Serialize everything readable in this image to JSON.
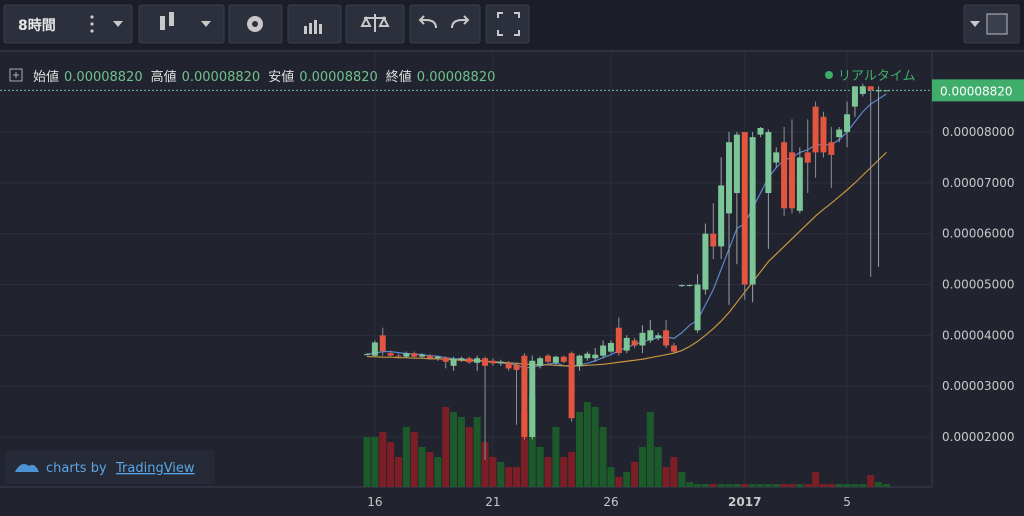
{
  "toolbar": {
    "interval": "8時間"
  },
  "legend": {
    "items": [
      {
        "label": "始値",
        "value": "0.00008820"
      },
      {
        "label": "高値",
        "value": "0.00008820"
      },
      {
        "label": "安値",
        "value": "0.00008820"
      },
      {
        "label": "終値",
        "value": "0.00008820"
      }
    ],
    "status": "リアルタイム"
  },
  "watermark": {
    "prefix": "charts by",
    "brand": "TradingView"
  },
  "chart_data": {
    "type": "candlestick",
    "categories": [
      null,
      "16",
      null,
      null,
      null,
      null,
      null,
      null,
      null,
      null,
      null,
      null,
      null,
      null,
      null,
      null,
      "21",
      null,
      null,
      null,
      null,
      null,
      null,
      null,
      null,
      null,
      null,
      null,
      null,
      null,
      null,
      "26",
      null,
      null,
      null,
      null,
      null,
      null,
      null,
      null,
      null,
      null,
      null,
      null,
      null,
      null,
      null,
      null,
      "2017",
      null,
      null,
      null,
      null,
      null,
      null,
      null,
      null,
      null,
      null,
      null,
      null,
      "5",
      null,
      null,
      null,
      null,
      null
    ],
    "open": [
      3.62e-05,
      3.6e-05,
      4e-05,
      3.65e-05,
      3.6e-05,
      3.58e-05,
      3.65e-05,
      3.58e-05,
      3.6e-05,
      3.55e-05,
      3.56e-05,
      3.4e-05,
      3.52e-05,
      3.55e-05,
      3.46e-05,
      3.55e-05,
      3.5e-05,
      3.45e-05,
      3.45e-05,
      3.42e-05,
      3.6e-05,
      2e-05,
      3.4e-05,
      3.6e-05,
      3.46e-05,
      3.58e-05,
      3.65e-05,
      3.4e-05,
      3.55e-05,
      3.55e-05,
      3.6e-05,
      3.68e-05,
      4.15e-05,
      3.7e-05,
      3.9e-05,
      3.8e-05,
      3.9e-05,
      3.95e-05,
      4.1e-05,
      3.8e-05,
      4.97e-05,
      4.98e-05,
      4.1e-05,
      4.9e-05,
      6e-05,
      5.75e-05,
      6.4e-05,
      6.8e-05,
      8e-05,
      5e-05,
      7.95e-05,
      6.8e-05,
      7.4e-05,
      7.8e-05,
      7.6e-05,
      6.45e-05,
      7.6e-05,
      8.5e-05,
      8.3e-05,
      7.8e-05,
      7.9e-05,
      8e-05,
      8.5e-05,
      8.75e-05,
      8.9e-05,
      8.8e-05,
      8.82e-05
    ],
    "high": [
      3.65e-05,
      3.9e-05,
      4.15e-05,
      3.7e-05,
      3.64e-05,
      3.68e-05,
      3.68e-05,
      3.65e-05,
      3.63e-05,
      3.6e-05,
      3.59e-05,
      3.58e-05,
      3.58e-05,
      3.58e-05,
      3.6e-05,
      3.58e-05,
      3.55e-05,
      3.52e-05,
      3.49e-05,
      3.46e-05,
      3.65e-05,
      3.6e-05,
      3.58e-05,
      3.63e-05,
      3.6e-05,
      3.6e-05,
      3.68e-05,
      3.62e-05,
      3.68e-05,
      3.75e-05,
      3.9e-05,
      3.9e-05,
      4.35e-05,
      4e-05,
      3.95e-05,
      4.2e-05,
      4.3e-05,
      4.05e-05,
      4.3e-05,
      3.85e-05,
      5e-05,
      5e-05,
      5.2e-05,
      6.2e-05,
      6.6e-05,
      7.5e-05,
      8e-05,
      8e-05,
      8e-05,
      8e-05,
      8.1e-05,
      8.05e-05,
      7.7e-05,
      8.1e-05,
      8.25e-05,
      7.7e-05,
      8.25e-05,
      8.6e-05,
      8.4e-05,
      8.1e-05,
      8.1e-05,
      8.6e-05,
      8.9e-05,
      8.95e-05,
      8.9e-05,
      8.9e-05,
      8.82e-05
    ],
    "low": [
      3.6e-05,
      3.58e-05,
      3.6e-05,
      3.58e-05,
      3.55e-05,
      3.55e-05,
      3.55e-05,
      3.54e-05,
      3.52e-05,
      3.5e-05,
      3.35e-05,
      3.3e-05,
      3.48e-05,
      3.44e-05,
      3.3e-05,
      1.55e-05,
      3.4e-05,
      3.4e-05,
      3.3e-05,
      2.24e-05,
      1.95e-05,
      1.95e-05,
      3.35e-05,
      3.45e-05,
      3.4e-05,
      3.45e-05,
      2.3e-05,
      3.3e-05,
      3.5e-05,
      3.48e-05,
      3.55e-05,
      3.65e-05,
      3.6e-05,
      3.65e-05,
      3.75e-05,
      3.65e-05,
      3.85e-05,
      3.9e-05,
      3.75e-05,
      3.65e-05,
      4.95e-05,
      4.96e-05,
      4.05e-05,
      4.8e-05,
      5.5e-05,
      5.5e-05,
      4.6e-05,
      5.4e-05,
      4.7e-05,
      4.65e-05,
      7.9e-05,
      5.7e-05,
      7.3e-05,
      6.35e-05,
      6.4e-05,
      6.4e-05,
      6.8e-05,
      7.1e-05,
      7.5e-05,
      6.9e-05,
      7.8e-05,
      7.7e-05,
      8.3e-05,
      8.7e-05,
      5.15e-05,
      5.35e-05,
      8.82e-05
    ],
    "close": [
      3.63e-05,
      3.86e-05,
      3.69e-05,
      3.6e-05,
      3.58e-05,
      3.65e-05,
      3.58e-05,
      3.62e-05,
      3.55e-05,
      3.58e-05,
      3.48e-05,
      3.54e-05,
      3.55e-05,
      3.47e-05,
      3.55e-05,
      3.4e-05,
      3.45e-05,
      3.48e-05,
      3.35e-05,
      3.32e-05,
      2e-05,
      3.5e-05,
      3.55e-05,
      3.48e-05,
      3.58e-05,
      3.48e-05,
      2.37e-05,
      3.6e-05,
      3.64e-05,
      3.62e-05,
      3.8e-05,
      3.85e-05,
      3.65e-05,
      3.95e-05,
      3.8e-05,
      4.05e-05,
      4.1e-05,
      4e-05,
      3.8e-05,
      3.68e-05,
      4.99e-05,
      4.99e-05,
      5e-05,
      6e-05,
      5.75e-05,
      6.95e-05,
      7.8e-05,
      7.95e-05,
      5e-05,
      7.9e-05,
      8.08e-05,
      8e-05,
      7.6e-05,
      6.5e-05,
      6.5e-05,
      7.5e-05,
      7.4e-05,
      7.6e-05,
      7.6e-05,
      7.55e-05,
      8.05e-05,
      8.35e-05,
      8.9e-05,
      8.9e-05,
      8.83e-05,
      8.82e-05,
      8.82e-05
    ],
    "up_color": "#7cc596",
    "down_color": "#e2553f",
    "volume": [
      50,
      50,
      55,
      45,
      30,
      60,
      55,
      40,
      35,
      30,
      80,
      75,
      70,
      60,
      70,
      45,
      30,
      25,
      20,
      20,
      75,
      90,
      40,
      30,
      60,
      30,
      35,
      75,
      85,
      80,
      60,
      20,
      10,
      15,
      25,
      40,
      75,
      40,
      20,
      30,
      15,
      5,
      3,
      3,
      3,
      3,
      3,
      3,
      3,
      3,
      3,
      3,
      3,
      3,
      3,
      3,
      3,
      15,
      3,
      3,
      3,
      3,
      3,
      3,
      12,
      5,
      3
    ],
    "volume_ylim": [
      0,
      100
    ],
    "volume_up_color": "#1d5a2b",
    "volume_down_color": "#7b1e25",
    "series": [
      {
        "color": "#5f86c9",
        "values": [
          3.63e-05,
          3.65e-05,
          3.68e-05,
          3.68e-05,
          3.66e-05,
          3.64e-05,
          3.63e-05,
          3.62e-05,
          3.6e-05,
          3.59e-05,
          3.56e-05,
          3.54e-05,
          3.53e-05,
          3.52e-05,
          3.51e-05,
          3.49e-05,
          3.47e-05,
          3.46e-05,
          3.44e-05,
          3.42e-05,
          3.35e-05,
          3.38e-05,
          3.4e-05,
          3.43e-05,
          3.46e-05,
          3.4e-05,
          3.39e-05,
          3.42e-05,
          3.45e-05,
          3.5e-05,
          3.56e-05,
          3.62e-05,
          3.7e-05,
          3.76e-05,
          3.82e-05,
          3.87e-05,
          3.92e-05,
          3.95e-05,
          3.97e-05,
          3.94e-05,
          4.05e-05,
          4.2e-05,
          4.3e-05,
          4.6e-05,
          4.9e-05,
          5.3e-05,
          5.7e-05,
          6.1e-05,
          6.2e-05,
          6.5e-05,
          6.8e-05,
          7.1e-05,
          7.3e-05,
          7.45e-05,
          7.5e-05,
          7.6e-05,
          7.65e-05,
          7.75e-05,
          7.75e-05,
          7.75e-05,
          7.85e-05,
          8e-05,
          8.2e-05,
          8.4e-05,
          8.55e-05,
          8.65e-05,
          8.75e-05
        ]
      },
      {
        "color": "#c8963e",
        "values": [
          3.58e-05,
          3.58e-05,
          3.57e-05,
          3.57e-05,
          3.56e-05,
          3.56e-05,
          3.55e-05,
          3.55e-05,
          3.54e-05,
          3.54e-05,
          3.53e-05,
          3.52e-05,
          3.51e-05,
          3.5e-05,
          3.5e-05,
          3.49e-05,
          3.48e-05,
          3.47e-05,
          3.46e-05,
          3.45e-05,
          3.43e-05,
          3.43e-05,
          3.42e-05,
          3.42e-05,
          3.41e-05,
          3.4e-05,
          3.4e-05,
          3.4e-05,
          3.41e-05,
          3.42e-05,
          3.43e-05,
          3.45e-05,
          3.47e-05,
          3.49e-05,
          3.51e-05,
          3.53e-05,
          3.56e-05,
          3.59e-05,
          3.62e-05,
          3.65e-05,
          3.7e-05,
          3.78e-05,
          3.88e-05,
          4e-05,
          4.13e-05,
          4.28e-05,
          4.45e-05,
          4.65e-05,
          4.85e-05,
          5.05e-05,
          5.25e-05,
          5.45e-05,
          5.6e-05,
          5.75e-05,
          5.9e-05,
          6.05e-05,
          6.2e-05,
          6.35e-05,
          6.48e-05,
          6.6e-05,
          6.73e-05,
          6.86e-05,
          7e-05,
          7.15e-05,
          7.3e-05,
          7.45e-05,
          7.6e-05
        ]
      }
    ],
    "ylim": [
      1.016e-05,
      9.575e-05
    ],
    "yticks": [
      {
        "value": 2e-05,
        "label": "0.00002000"
      },
      {
        "value": 3e-05,
        "label": "0.00003000"
      },
      {
        "value": 4e-05,
        "label": "0.00004000"
      },
      {
        "value": 5e-05,
        "label": "0.00005000"
      },
      {
        "value": 6e-05,
        "label": "0.00006000"
      },
      {
        "value": 7e-05,
        "label": "0.00007000"
      },
      {
        "value": 8e-05,
        "label": "0.00008000"
      }
    ],
    "last_price": {
      "value": 8.82e-05,
      "label": "0.00008820"
    },
    "grid": true
  }
}
